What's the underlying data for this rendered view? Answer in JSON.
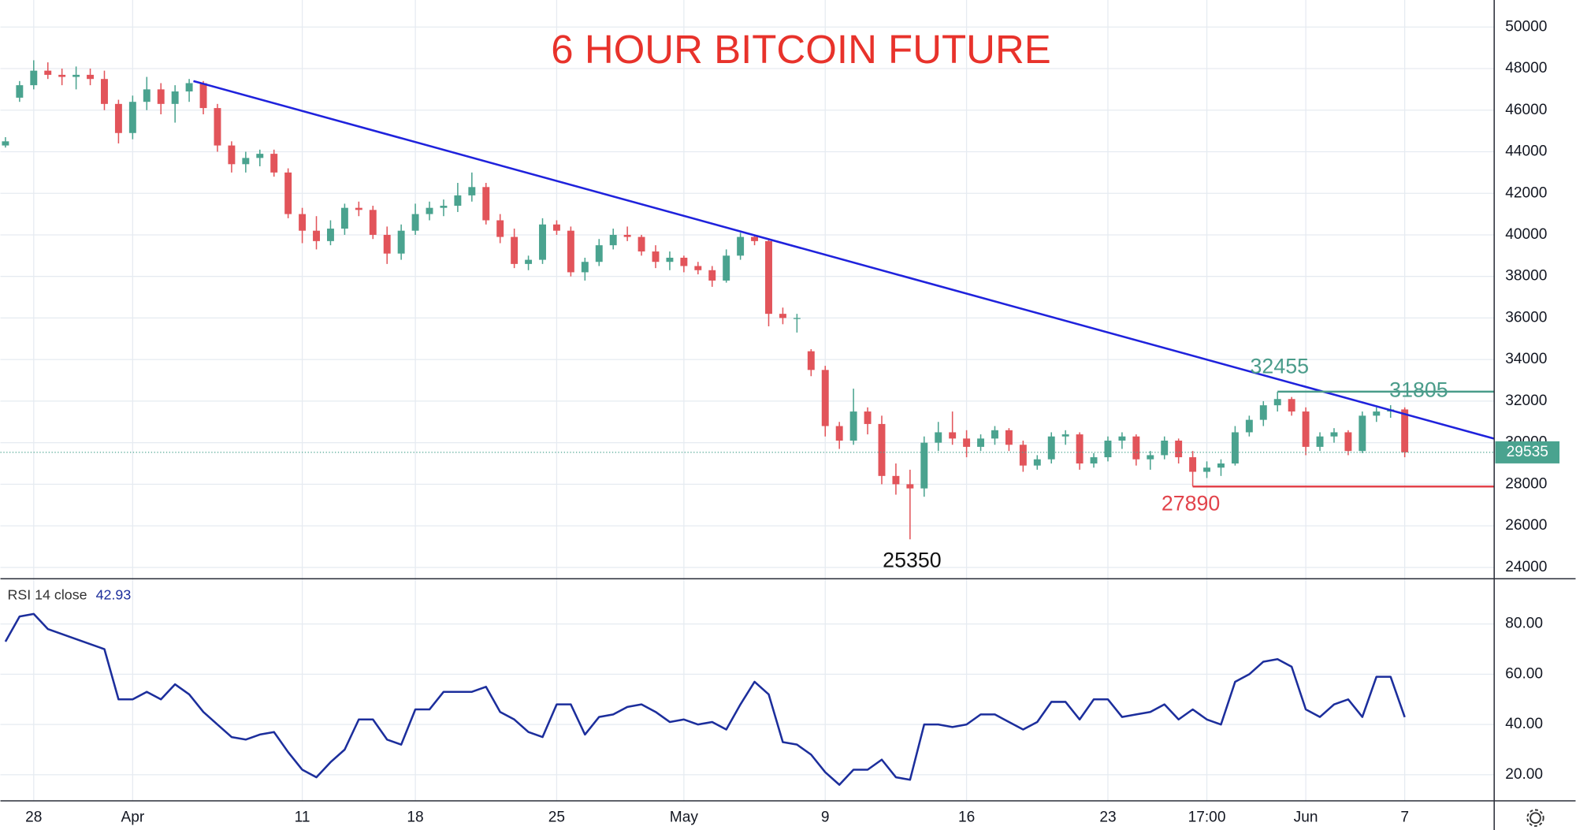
{
  "chart_data": [
    {
      "type": "candlestick",
      "title": "6 HOUR BITCOIN FUTURE",
      "up_color": "#4aa38f",
      "down_color": "#e2545a",
      "ylim": [
        23500,
        51300
      ],
      "yticks": [
        24000,
        26000,
        28000,
        30000,
        32000,
        34000,
        36000,
        38000,
        40000,
        42000,
        44000,
        46000,
        48000,
        50000
      ],
      "grid": true,
      "ohlc": [
        [
          44300,
          44700,
          44200,
          44500
        ],
        [
          46600,
          47400,
          46400,
          47200
        ],
        [
          47200,
          48400,
          47000,
          47900
        ],
        [
          47900,
          48300,
          47500,
          47700
        ],
        [
          47700,
          48000,
          47200,
          47600
        ],
        [
          47600,
          48100,
          47000,
          47700
        ],
        [
          47700,
          48000,
          47200,
          47500
        ],
        [
          47500,
          47900,
          46000,
          46300
        ],
        [
          46300,
          46500,
          44400,
          44900
        ],
        [
          44900,
          46700,
          44600,
          46400
        ],
        [
          46400,
          47600,
          46000,
          47000
        ],
        [
          47000,
          47300,
          45800,
          46300
        ],
        [
          46300,
          47200,
          45400,
          46900
        ],
        [
          46900,
          47500,
          46400,
          47300
        ],
        [
          47300,
          47400,
          45800,
          46100
        ],
        [
          46100,
          46300,
          44000,
          44300
        ],
        [
          44300,
          44500,
          43000,
          43400
        ],
        [
          43400,
          44000,
          43000,
          43700
        ],
        [
          43700,
          44100,
          43300,
          43900
        ],
        [
          43900,
          44100,
          42800,
          43000
        ],
        [
          43000,
          43200,
          40800,
          41000
        ],
        [
          41000,
          41300,
          39600,
          40200
        ],
        [
          40200,
          40900,
          39300,
          39700
        ],
        [
          39700,
          40700,
          39500,
          40300
        ],
        [
          40300,
          41500,
          40000,
          41300
        ],
        [
          41300,
          41600,
          40900,
          41200
        ],
        [
          41200,
          41400,
          39800,
          40000
        ],
        [
          40000,
          40400,
          38600,
          39100
        ],
        [
          39100,
          40500,
          38800,
          40200
        ],
        [
          40200,
          41500,
          40000,
          41000
        ],
        [
          41000,
          41600,
          40700,
          41300
        ],
        [
          41300,
          41700,
          40900,
          41400
        ],
        [
          41400,
          42500,
          41100,
          41900
        ],
        [
          41900,
          43000,
          41600,
          42300
        ],
        [
          42300,
          42500,
          40500,
          40700
        ],
        [
          40700,
          41000,
          39600,
          39900
        ],
        [
          39900,
          40300,
          38400,
          38600
        ],
        [
          38600,
          39000,
          38300,
          38800
        ],
        [
          38800,
          40800,
          38600,
          40500
        ],
        [
          40500,
          40700,
          40000,
          40200
        ],
        [
          40200,
          40400,
          38000,
          38200
        ],
        [
          38200,
          38900,
          37800,
          38700
        ],
        [
          38700,
          39800,
          38500,
          39500
        ],
        [
          39500,
          40300,
          39300,
          40000
        ],
        [
          40000,
          40400,
          39700,
          39900
        ],
        [
          39900,
          40000,
          39000,
          39200
        ],
        [
          39200,
          39500,
          38400,
          38700
        ],
        [
          38700,
          39200,
          38300,
          38900
        ],
        [
          38900,
          39000,
          38200,
          38500
        ],
        [
          38500,
          38700,
          38100,
          38300
        ],
        [
          38300,
          38500,
          37500,
          37800
        ],
        [
          37800,
          39300,
          37700,
          39000
        ],
        [
          39000,
          40100,
          38800,
          39900
        ],
        [
          39900,
          40000,
          39500,
          39700
        ],
        [
          39700,
          39800,
          35600,
          36200
        ],
        [
          36200,
          36500,
          35700,
          36000
        ],
        [
          36000,
          36200,
          35300,
          36000
        ],
        [
          34400,
          34500,
          33200,
          33500
        ],
        [
          33500,
          33700,
          30300,
          30800
        ],
        [
          30800,
          31000,
          29700,
          30100
        ],
        [
          30100,
          32600,
          29900,
          31500
        ],
        [
          31500,
          31700,
          30400,
          30900
        ],
        [
          30900,
          31300,
          28000,
          28400
        ],
        [
          28400,
          29000,
          27500,
          28000
        ],
        [
          28000,
          28700,
          25350,
          27800
        ],
        [
          27800,
          30300,
          27400,
          30000
        ],
        [
          30000,
          31000,
          29600,
          30500
        ],
        [
          30500,
          31500,
          29900,
          30200
        ],
        [
          30200,
          30600,
          29300,
          29800
        ],
        [
          29800,
          30400,
          29600,
          30200
        ],
        [
          30200,
          30800,
          29900,
          30600
        ],
        [
          30600,
          30700,
          29600,
          29900
        ],
        [
          29900,
          30100,
          28600,
          28900
        ],
        [
          28900,
          29400,
          28700,
          29200
        ],
        [
          29200,
          30500,
          29000,
          30300
        ],
        [
          30300,
          30600,
          29900,
          30400
        ],
        [
          30400,
          30500,
          28700,
          29000
        ],
        [
          29000,
          29500,
          28800,
          29300
        ],
        [
          29300,
          30300,
          29100,
          30100
        ],
        [
          30100,
          30500,
          29700,
          30300
        ],
        [
          30300,
          30400,
          28900,
          29200
        ],
        [
          29200,
          29600,
          28700,
          29400
        ],
        [
          29400,
          30300,
          29200,
          30100
        ],
        [
          30100,
          30200,
          29000,
          29300
        ],
        [
          29300,
          29600,
          27890,
          28600
        ],
        [
          28600,
          29100,
          28300,
          28800
        ],
        [
          28800,
          29200,
          28400,
          29000
        ],
        [
          29000,
          30800,
          28900,
          30500
        ],
        [
          30500,
          31300,
          30300,
          31100
        ],
        [
          31100,
          32000,
          30800,
          31800
        ],
        [
          31800,
          32455,
          31500,
          32100
        ],
        [
          32100,
          32200,
          31300,
          31500
        ],
        [
          31500,
          31700,
          29400,
          29800
        ],
        [
          29800,
          30500,
          29600,
          30300
        ],
        [
          30300,
          30700,
          30000,
          30500
        ],
        [
          30500,
          30600,
          29400,
          29600
        ],
        [
          29600,
          31500,
          29500,
          31300
        ],
        [
          31300,
          31700,
          31000,
          31500
        ],
        [
          31500,
          31805,
          31200,
          31600
        ],
        [
          31600,
          31700,
          29300,
          29535
        ]
      ],
      "lines": [
        {
          "color": "#1f22dc",
          "x": [
            13.3,
            105.3
          ],
          "y": [
            47400,
            30200
          ]
        },
        {
          "color": "#4a9c8a",
          "x": [
            90,
            105.3
          ],
          "y": [
            32455,
            32455
          ]
        },
        {
          "color": "#e2434b",
          "x": [
            84,
            105.3
          ],
          "y": [
            27890,
            27890
          ]
        }
      ]
    },
    {
      "type": "line",
      "title": "RSI 14 close",
      "color": "#1c2e9c",
      "ylim": [
        9.6,
        97.6
      ],
      "yticks": [
        {
          "value": 20,
          "label": "20.00"
        },
        {
          "value": 40,
          "label": "40.00"
        },
        {
          "value": 60,
          "label": "60.00"
        },
        {
          "value": 80,
          "label": "80.00"
        }
      ],
      "grid": true,
      "categories": [
        null,
        null,
        "28",
        null,
        null,
        null,
        null,
        null,
        null,
        "Apr",
        null,
        null,
        null,
        null,
        null,
        null,
        null,
        null,
        null,
        null,
        null,
        "11",
        null,
        null,
        null,
        null,
        null,
        null,
        null,
        "18",
        null,
        null,
        null,
        null,
        null,
        null,
        null,
        null,
        null,
        "25",
        null,
        null,
        null,
        null,
        null,
        null,
        null,
        null,
        "May",
        null,
        null,
        null,
        null,
        null,
        null,
        null,
        null,
        null,
        "9",
        null,
        null,
        null,
        null,
        null,
        null,
        null,
        null,
        null,
        "16",
        null,
        null,
        null,
        null,
        null,
        null,
        null,
        null,
        null,
        "23",
        null,
        null,
        null,
        null,
        null,
        null,
        "17:00",
        null,
        null,
        null,
        null,
        null,
        null,
        "Jun",
        null,
        null,
        null,
        null,
        null,
        null,
        "7"
      ],
      "values": [
        73,
        83,
        84,
        78,
        76,
        74,
        72,
        70,
        50,
        50,
        53,
        50,
        56,
        52,
        45,
        40,
        35,
        34,
        36,
        37,
        29,
        22,
        19,
        25,
        30,
        42,
        42,
        34,
        32,
        46,
        46,
        53,
        53,
        53,
        55,
        45,
        42,
        37,
        35,
        48,
        48,
        36,
        43,
        44,
        47,
        48,
        45,
        41,
        42,
        40,
        41,
        38,
        48,
        57,
        52,
        33,
        32,
        28,
        21,
        16,
        22,
        22,
        26,
        19,
        18,
        40,
        40,
        39,
        40,
        44,
        44,
        41,
        38,
        41,
        49,
        49,
        42,
        50,
        50,
        43,
        44,
        45,
        48,
        42,
        46,
        42,
        40,
        57,
        60,
        65,
        66,
        63,
        46,
        43,
        48,
        50,
        43,
        59,
        59,
        42.93
      ]
    }
  ]
}
